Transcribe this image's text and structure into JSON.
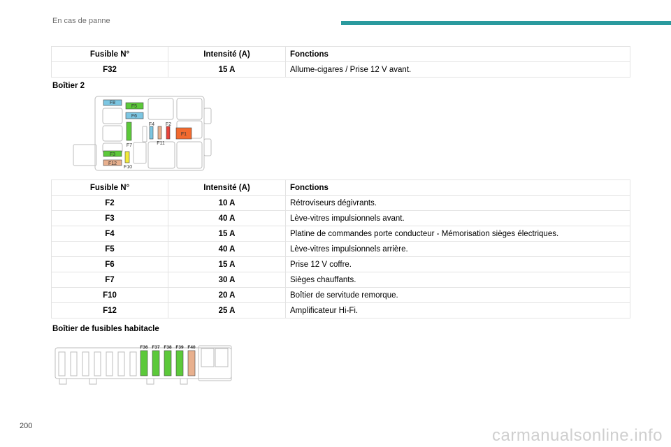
{
  "header": {
    "title": "En cas de panne",
    "accent_color": "#2a9a9e"
  },
  "columns": {
    "fuse": "Fusible N°",
    "amp": "Intensité (A)",
    "func": "Fonctions"
  },
  "table1": [
    {
      "fuse": "F32",
      "amp": "15 A",
      "func": "Allume-cigares / Prise 12 V avant."
    }
  ],
  "section2": "Boîtier 2",
  "table2": [
    {
      "fuse": "F2",
      "amp": "10 A",
      "func": "Rétroviseurs dégivrants."
    },
    {
      "fuse": "F3",
      "amp": "40 A",
      "func": "Lève-vitres impulsionnels avant."
    },
    {
      "fuse": "F4",
      "amp": "15 A",
      "func": "Platine de commandes porte conducteur - Mémorisation sièges électriques."
    },
    {
      "fuse": "F5",
      "amp": "40 A",
      "func": "Lève-vitres impulsionnels arrière."
    },
    {
      "fuse": "F6",
      "amp": "15 A",
      "func": "Prise 12 V coffre."
    },
    {
      "fuse": "F7",
      "amp": "30 A",
      "func": "Sièges chauffants."
    },
    {
      "fuse": "F10",
      "amp": "20 A",
      "func": "Boîtier de servitude remorque."
    },
    {
      "fuse": "F12",
      "amp": "25 A",
      "func": "Amplificateur Hi-Fi."
    }
  ],
  "section3": "Boîtier de fusibles habitacle",
  "diagram2_labels": {
    "f1": "F1",
    "f2": "F2",
    "f3": "F3",
    "f4": "F4",
    "f5": "F5",
    "f6": "F6",
    "f7": "F7",
    "f8": "F8",
    "f10": "F10",
    "f11": "F11",
    "f12": "F12"
  },
  "diagram3_labels": {
    "f36": "F36",
    "f37": "F37",
    "f38": "F38",
    "f39": "F39",
    "f40": "F40"
  },
  "colors": {
    "green": "#5cc93a",
    "blue": "#7cc6e2",
    "red": "#e8433a",
    "orange": "#f26a2e",
    "salmon": "#e8b08e",
    "yellow": "#f2ea3b"
  },
  "footer": {
    "page_number": "200",
    "watermark": "carmanualsonline.info"
  }
}
